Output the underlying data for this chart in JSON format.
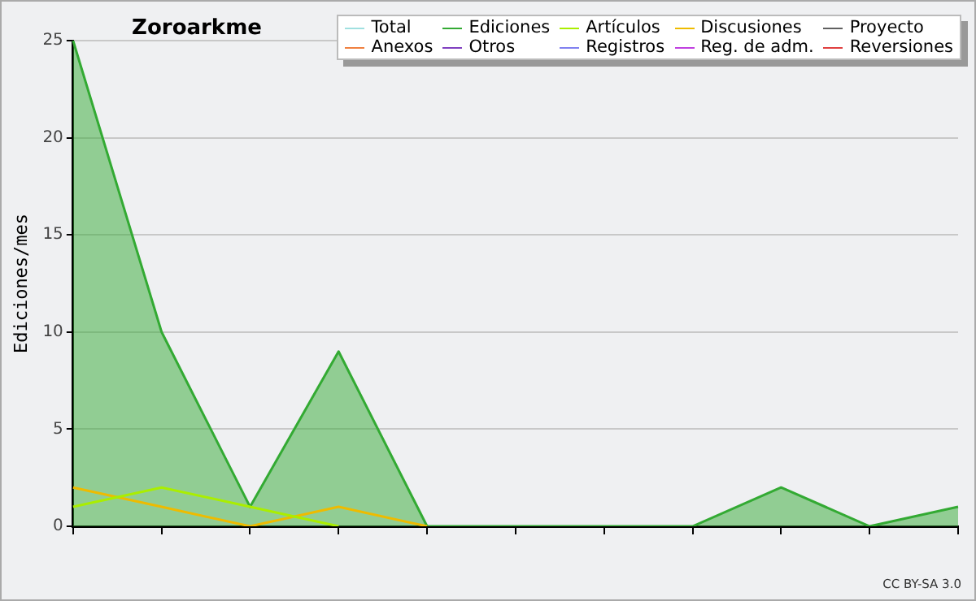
{
  "chart_data": {
    "type": "area",
    "title": "Zoroarkme",
    "ylabel": "Ediciones/mes",
    "categories": [
      null,
      null,
      null,
      null,
      null,
      null,
      null,
      null,
      null,
      null,
      null
    ],
    "series": [
      {
        "name": "Total",
        "color": "#a0e0e0",
        "type": "line",
        "values": [
          null,
          null,
          null,
          null,
          null,
          null,
          null,
          null,
          null,
          null,
          null
        ]
      },
      {
        "name": "Ediciones",
        "color": "#33aa33",
        "type": "area",
        "values": [
          25,
          10,
          1,
          9,
          0,
          0,
          0,
          0,
          2,
          0,
          1
        ]
      },
      {
        "name": "Artículos",
        "color": "#aaee00",
        "type": "line",
        "values": [
          1,
          2,
          1,
          0,
          null,
          null,
          null,
          null,
          null,
          null,
          null
        ]
      },
      {
        "name": "Discusiones",
        "color": "#eebb00",
        "type": "line",
        "values": [
          2,
          1,
          0,
          1,
          0,
          null,
          null,
          null,
          null,
          null,
          null
        ]
      },
      {
        "name": "Proyecto",
        "color": "#606060",
        "type": "line",
        "values": [
          null,
          null,
          null,
          null,
          null,
          null,
          null,
          null,
          null,
          null,
          null
        ]
      },
      {
        "name": "Anexos",
        "color": "#f08040",
        "type": "line",
        "values": [
          null,
          null,
          null,
          null,
          null,
          null,
          null,
          null,
          null,
          null,
          null
        ]
      },
      {
        "name": "Otros",
        "color": "#8040c0",
        "type": "line",
        "values": [
          null,
          null,
          null,
          null,
          null,
          null,
          null,
          null,
          null,
          null,
          null
        ]
      },
      {
        "name": "Registros",
        "color": "#8080f0",
        "type": "line",
        "values": [
          null,
          null,
          null,
          null,
          null,
          null,
          null,
          null,
          null,
          null,
          null
        ]
      },
      {
        "name": "Reg. de adm.",
        "color": "#c040e0",
        "type": "line",
        "values": [
          null,
          null,
          null,
          null,
          null,
          null,
          null,
          null,
          null,
          null,
          null
        ]
      },
      {
        "name": "Reversiones",
        "color": "#e04040",
        "type": "line",
        "values": [
          null,
          null,
          null,
          null,
          null,
          null,
          null,
          null,
          null,
          null,
          null
        ]
      }
    ],
    "ylim": [
      0,
      25
    ],
    "yticks": [
      0,
      5,
      10,
      15,
      20,
      25
    ],
    "grid": "y",
    "legend": "top right",
    "annotations": [
      "CC BY-SA 3.0"
    ]
  }
}
